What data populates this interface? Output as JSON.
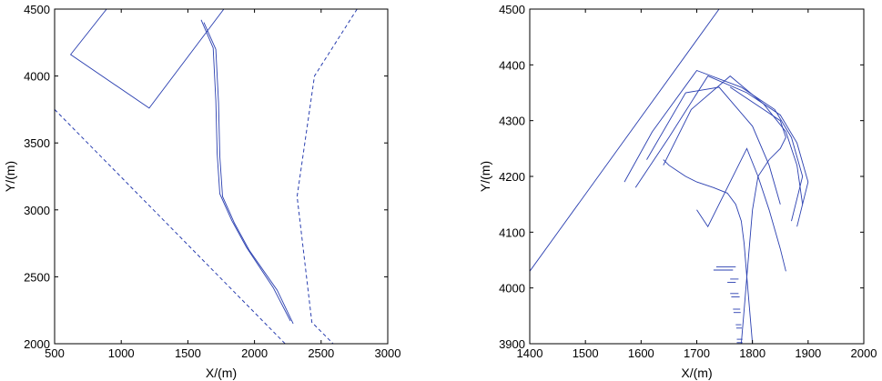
{
  "chart_data": [
    {
      "type": "line",
      "panel": "left",
      "xlabel": "X/(m)",
      "ylabel": "Y/(m)",
      "xlim": [
        500,
        3000
      ],
      "ylim": [
        2000,
        4500
      ],
      "xticks": [
        "500",
        "1000",
        "1500",
        "2000",
        "2500",
        "3000"
      ],
      "yticks": [
        "2000",
        "2500",
        "3000",
        "3500",
        "4000",
        "4500"
      ],
      "grid": false,
      "series": [
        {
          "style": "solid",
          "x": [
            890,
            620,
            1210,
            1770
          ],
          "y": [
            4500,
            4160,
            3760,
            4500
          ]
        },
        {
          "style": "dashed",
          "x": [
            500,
            2230
          ],
          "y": [
            3750,
            2000
          ]
        },
        {
          "style": "dashed",
          "x": [
            2770,
            2450,
            2320,
            2430,
            2590
          ],
          "y": [
            4500,
            4000,
            3100,
            2160,
            2000
          ]
        },
        {
          "style": "solid",
          "x": [
            2290,
            2170,
            1960,
            1850,
            1760,
            1740,
            1730,
            1710,
            1620
          ],
          "y": [
            2150,
            2400,
            2700,
            2900,
            3100,
            3400,
            3800,
            4200,
            4400
          ]
        },
        {
          "style": "solid",
          "x": [
            2270,
            2140,
            1940,
            1830,
            1740,
            1720,
            1710,
            1690,
            1600
          ],
          "y": [
            2170,
            2420,
            2720,
            2920,
            3120,
            3420,
            3820,
            4210,
            4420
          ]
        }
      ]
    },
    {
      "type": "line",
      "panel": "right",
      "xlabel": "X/(m)",
      "ylabel": "Y/(m)",
      "xlim": [
        1400,
        2000
      ],
      "ylim": [
        3900,
        4500
      ],
      "xticks": [
        "1400",
        "1500",
        "1600",
        "1700",
        "1800",
        "1900",
        "2000"
      ],
      "yticks": [
        "3900",
        "4000",
        "4100",
        "4200",
        "4300",
        "4400",
        "4500"
      ],
      "grid": false,
      "series": [
        {
          "style": "solid",
          "x": [
            1400,
            1740
          ],
          "y": [
            4030,
            4500
          ]
        },
        {
          "style": "solid",
          "x": [
            1800,
            1795,
            1790,
            1785,
            1780,
            1770,
            1755,
            1730,
            1700,
            1680,
            1665,
            1650,
            1640
          ],
          "y": [
            3900,
            3960,
            4020,
            4080,
            4120,
            4150,
            4170,
            4180,
            4190,
            4200,
            4210,
            4220,
            4230
          ]
        },
        {
          "style": "solid",
          "x": [
            1780,
            1785,
            1790,
            1795,
            1800,
            1810,
            1830,
            1850,
            1860,
            1850,
            1820,
            1790,
            1760
          ],
          "y": [
            3900,
            3960,
            4020,
            4080,
            4140,
            4200,
            4230,
            4250,
            4270,
            4300,
            4320,
            4340,
            4360
          ]
        },
        {
          "style": "solid",
          "x": [
            1570,
            1620,
            1700,
            1780,
            1840,
            1870,
            1890,
            1870
          ],
          "y": [
            4190,
            4280,
            4390,
            4360,
            4320,
            4270,
            4200,
            4120
          ]
        },
        {
          "style": "solid",
          "x": [
            1590,
            1650,
            1720,
            1790,
            1850,
            1880,
            1900,
            1880
          ],
          "y": [
            4180,
            4270,
            4380,
            4350,
            4310,
            4260,
            4190,
            4110
          ]
        },
        {
          "style": "solid",
          "x": [
            1700,
            1720,
            1760,
            1790,
            1810,
            1830,
            1850,
            1860
          ],
          "y": [
            4140,
            4110,
            4190,
            4250,
            4200,
            4140,
            4070,
            4030
          ]
        },
        {
          "style": "solid",
          "x": [
            1640,
            1690,
            1760,
            1820,
            1860,
            1880,
            1890
          ],
          "y": [
            4220,
            4320,
            4380,
            4330,
            4280,
            4220,
            4150
          ]
        },
        {
          "style": "solid",
          "x": [
            1610,
            1680,
            1740,
            1800,
            1830,
            1850
          ],
          "y": [
            4230,
            4350,
            4360,
            4290,
            4220,
            4150
          ]
        }
      ],
      "annotations_hull_segments": [
        {
          "x": [
            1730,
            1765
          ],
          "y": [
            4032,
            4032
          ]
        },
        {
          "x": [
            1735,
            1770
          ],
          "y": [
            4038,
            4038
          ]
        },
        {
          "x": [
            1755,
            1770
          ],
          "y": [
            4010,
            4010
          ]
        },
        {
          "x": [
            1760,
            1775
          ],
          "y": [
            4016,
            4016
          ]
        },
        {
          "x": [
            1760,
            1775
          ],
          "y": [
            3990,
            3990
          ]
        },
        {
          "x": [
            1762,
            1777
          ],
          "y": [
            3984,
            3984
          ]
        },
        {
          "x": [
            1765,
            1778
          ],
          "y": [
            3962,
            3962
          ]
        },
        {
          "x": [
            1766,
            1779
          ],
          "y": [
            3956,
            3956
          ]
        },
        {
          "x": [
            1770,
            1780
          ],
          "y": [
            3934,
            3934
          ]
        },
        {
          "x": [
            1771,
            1781
          ],
          "y": [
            3928,
            3928
          ]
        },
        {
          "x": [
            1772,
            1782
          ],
          "y": [
            3908,
            3908
          ]
        },
        {
          "x": [
            1772,
            1782
          ],
          "y": [
            3902,
            3902
          ]
        }
      ]
    }
  ]
}
